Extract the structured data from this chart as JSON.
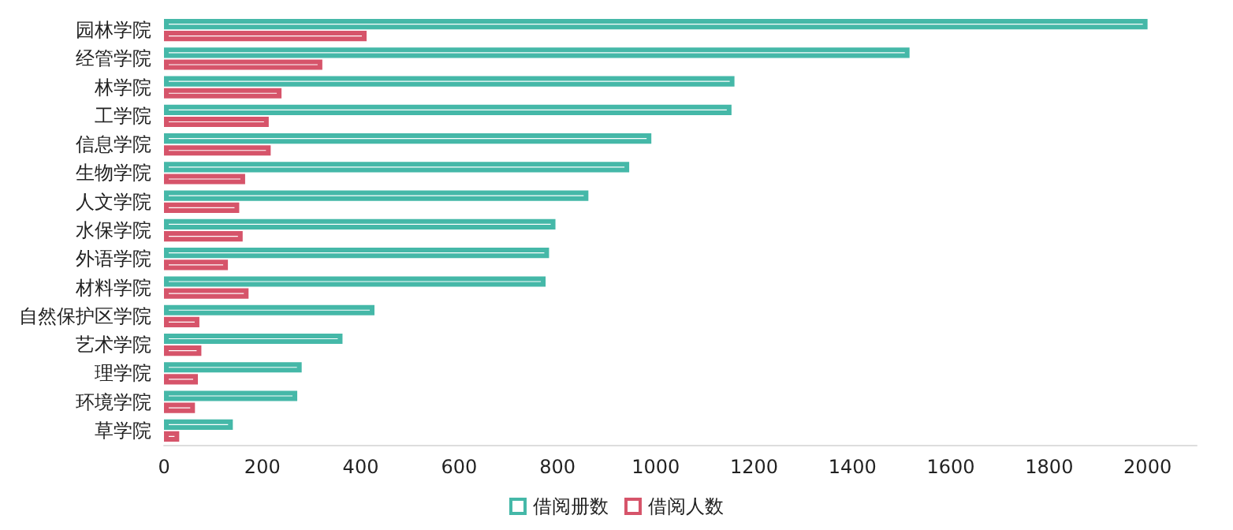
{
  "chart_data": {
    "type": "bar",
    "orientation": "horizontal",
    "categories": [
      "园林学院",
      "经管学院",
      "林学院",
      "工学院",
      "信息学院",
      "生物学院",
      "人文学院",
      "水保学院",
      "外语学院",
      "材料学院",
      "自然保护区学院",
      "艺术学院",
      "理学院",
      "环境学院",
      "草学院"
    ],
    "series": [
      {
        "name": "借阅册数",
        "color": "#45b8a8",
        "values": [
          2000,
          1516,
          1160,
          1154,
          991,
          946,
          863,
          796,
          783,
          776,
          428,
          363,
          280,
          271,
          140
        ]
      },
      {
        "name": "借阅人数",
        "color": "#d6546a",
        "values": [
          412,
          322,
          239,
          213,
          217,
          165,
          153,
          160,
          130,
          172,
          72,
          76,
          69,
          63,
          31
        ]
      }
    ],
    "xlim": [
      0,
      2100
    ],
    "xticks": [
      0,
      200,
      400,
      600,
      800,
      1000,
      1200,
      1400,
      1600,
      1800,
      2000
    ],
    "grid": false,
    "legend": "bottom"
  }
}
